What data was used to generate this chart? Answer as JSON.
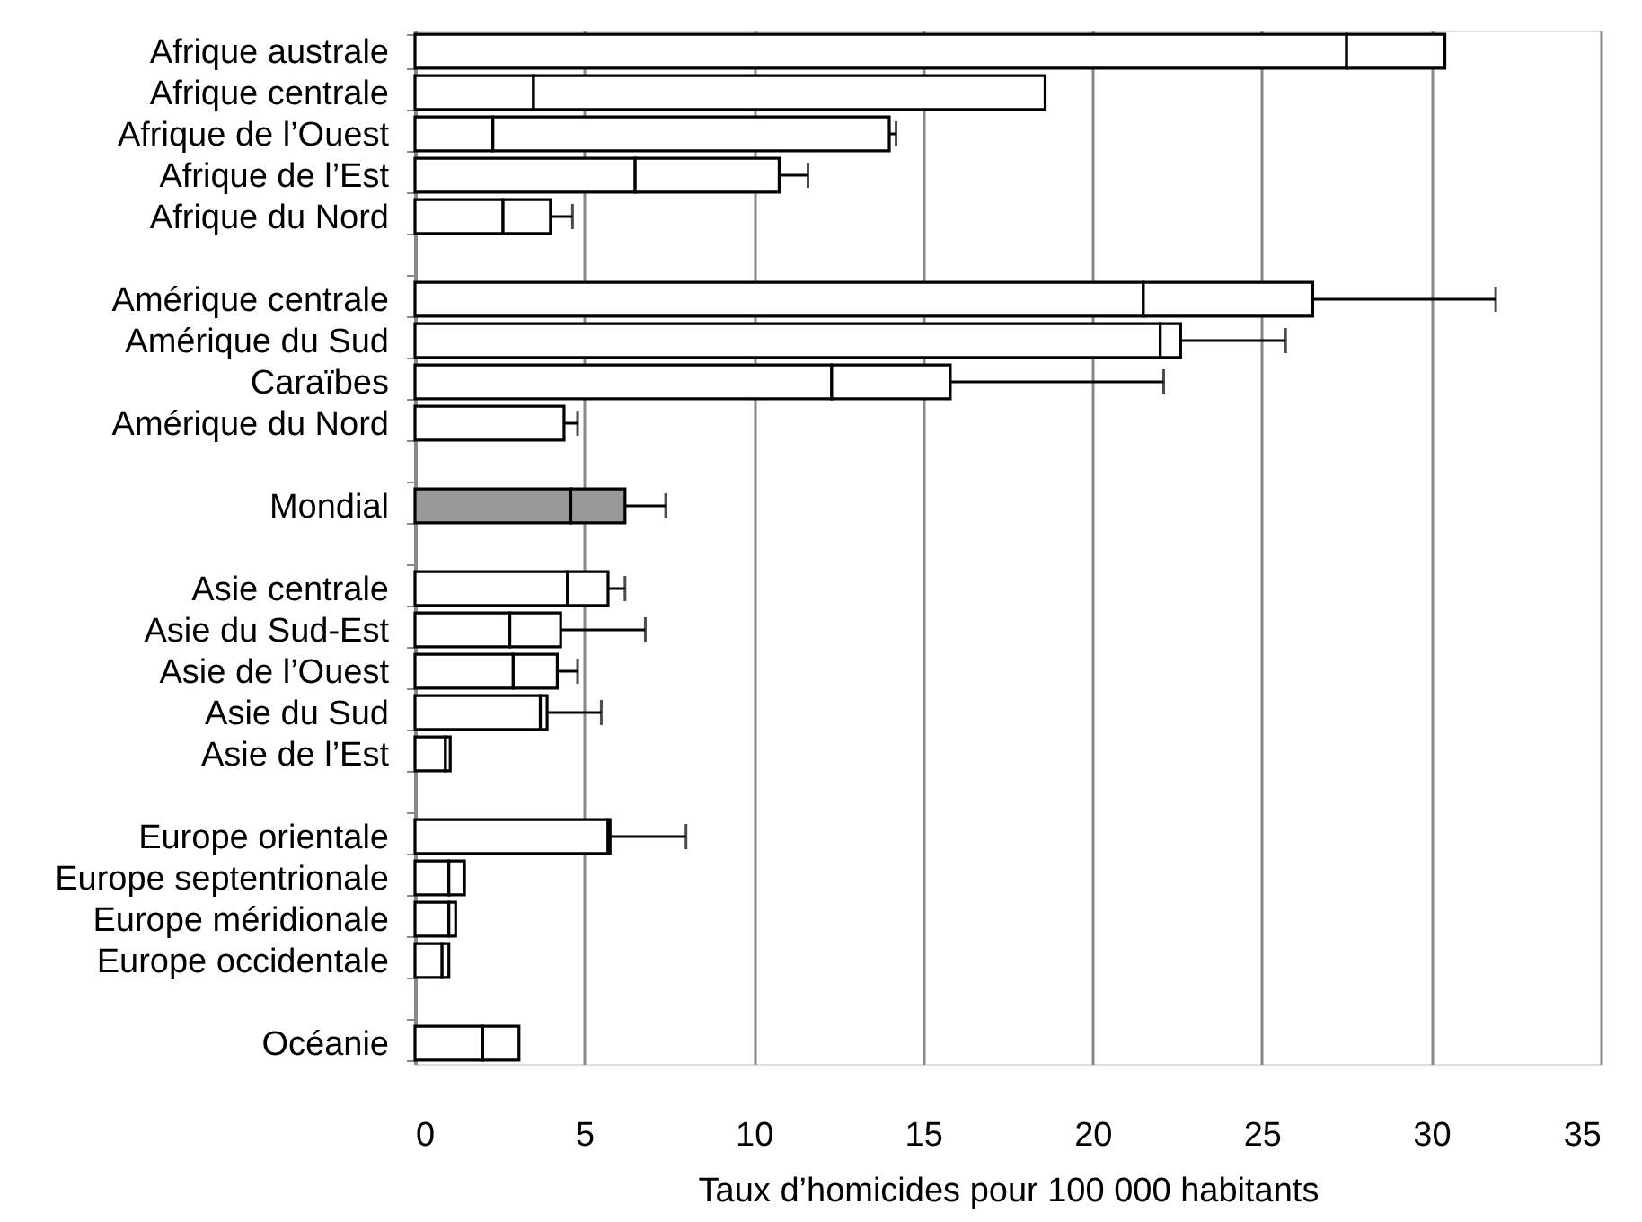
{
  "chart_data": {
    "type": "bar",
    "orientation": "horizontal",
    "stacked": true,
    "categories": [
      "Afrique australe",
      "Afrique centrale",
      "Afrique de l’Ouest",
      "Afrique de l’Est",
      "Afrique du Nord",
      null,
      "Amérique centrale",
      "Amérique du Sud",
      "Caraïbes",
      "Amérique du Nord",
      null,
      "Mondial",
      null,
      "Asie centrale",
      "Asie du Sud-Est",
      "Asie de l’Ouest",
      "Asie du Sud",
      "Asie de l’Est",
      null,
      "Europe orientale",
      "Europe septentrionale",
      "Europe méridionale",
      "Europe occidentale",
      null,
      "Océanie"
    ],
    "series": [
      {
        "colors": [
          "#ffffff",
          "#ffffff",
          "#ffffff",
          "#ffffff",
          "#ffffff",
          null,
          "#ffffff",
          "#ffffff",
          "#ffffff",
          "#ffffff",
          null,
          "#999999",
          null,
          "#ffffff",
          "#ffffff",
          "#ffffff",
          "#ffffff",
          "#ffffff",
          null,
          "#ffffff",
          "#ffffff",
          "#ffffff",
          "#ffffff",
          null,
          "#ffffff"
        ],
        "values": [
          27.5,
          3.5,
          2.3,
          6.5,
          2.6,
          null,
          21.5,
          22.0,
          12.3,
          4.4,
          null,
          4.6,
          null,
          4.5,
          2.8,
          2.9,
          3.7,
          0.9,
          null,
          5.7,
          1.0,
          1.0,
          0.8,
          null,
          2.0
        ],
        "errors": [
          null,
          null,
          null,
          null,
          null,
          null,
          null,
          null,
          null,
          [
            4.4,
            4.8
          ],
          null,
          null,
          null,
          null,
          null,
          null,
          null,
          null,
          null,
          null,
          null,
          null,
          null,
          null,
          null
        ]
      },
      {
        "colors": [
          "#ffffff",
          "#ffffff",
          "#ffffff",
          "#ffffff",
          "#ffffff",
          null,
          "#ffffff",
          "#ffffff",
          "#ffffff",
          null,
          null,
          "#999999",
          null,
          "#ffffff",
          "#ffffff",
          "#ffffff",
          "#ffffff",
          "#ffffff",
          null,
          "#ffffff",
          "#ffffff",
          "#ffffff",
          "#ffffff",
          null,
          "#ffffff"
        ],
        "values": [
          2.9,
          15.1,
          11.7,
          4.25,
          1.4,
          null,
          5.0,
          0.6,
          3.5,
          null,
          null,
          1.6,
          null,
          1.2,
          1.5,
          1.3,
          0.2,
          0.14,
          null,
          0.06,
          0.46,
          0.2,
          0.2,
          null,
          1.07
        ],
        "errors": [
          null,
          null,
          [
            14.0,
            14.2
          ],
          [
            10.75,
            11.6
          ],
          [
            4.0,
            4.65
          ],
          null,
          [
            26.5,
            31.9
          ],
          [
            22.6,
            25.7
          ],
          [
            15.8,
            22.1
          ],
          null,
          null,
          [
            6.2,
            7.4
          ],
          null,
          [
            5.7,
            6.2
          ],
          [
            4.3,
            6.8
          ],
          [
            4.2,
            4.8
          ],
          [
            3.9,
            5.5
          ],
          null,
          null,
          [
            5.76,
            8.0
          ],
          null,
          null,
          null,
          null,
          null
        ]
      }
    ],
    "xlim": [
      0,
      35
    ],
    "xticks": [
      0,
      5,
      10,
      15,
      20,
      25,
      30,
      35
    ],
    "grid": "x",
    "xlabel": "Taux d’homicides pour 100 000 habitants"
  }
}
